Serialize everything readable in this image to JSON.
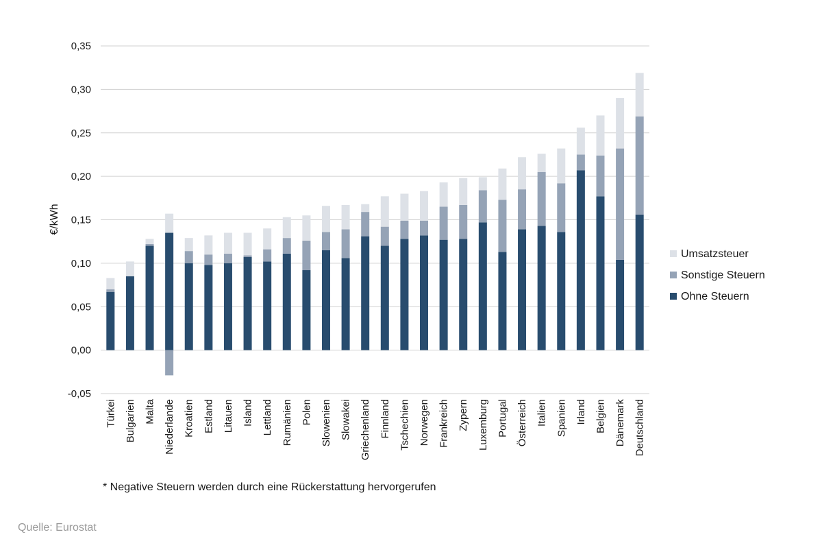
{
  "chart_data": {
    "type": "bar",
    "stacked": true,
    "ylabel": "€/kWh",
    "xlabel": "",
    "ylim": [
      -0.05,
      0.35
    ],
    "yticks": [
      "-0,05",
      "0,00",
      "0,05",
      "0,10",
      "0,15",
      "0,20",
      "0,25",
      "0,30",
      "0,35"
    ],
    "grid": true,
    "legend_position": "right",
    "categories": [
      "Türkei",
      "Bulgarien",
      "Malta",
      "Niederlande",
      "Kroatien",
      "Estland",
      "Litauen",
      "Island",
      "Lettland",
      "Rumänien",
      "Polen",
      "Slowenien",
      "Slowakei",
      "Griechenland",
      "Finnland",
      "Tschechien",
      "Norwegen",
      "Frankreich",
      "Zypern",
      "Luxemburg",
      "Portugal",
      "Österreich",
      "Italien",
      "Spanien",
      "Irland",
      "Belgien",
      "Dänemark",
      "Deutschland"
    ],
    "series": [
      {
        "name": "Ohne Steuern",
        "color": "#284c6e",
        "values": [
          0.067,
          0.085,
          0.12,
          0.135,
          0.1,
          0.098,
          0.1,
          0.107,
          0.102,
          0.111,
          0.092,
          0.115,
          0.106,
          0.131,
          0.12,
          0.128,
          0.132,
          0.127,
          0.128,
          0.147,
          0.113,
          0.139,
          0.143,
          0.136,
          0.207,
          0.177,
          0.104,
          0.156
        ]
      },
      {
        "name": "Sonstige Steuern",
        "color": "#95a3b6",
        "values": [
          0.003,
          0.0,
          0.002,
          -0.029,
          0.014,
          0.012,
          0.011,
          0.002,
          0.014,
          0.018,
          0.034,
          0.021,
          0.033,
          0.028,
          0.022,
          0.021,
          0.017,
          0.038,
          0.039,
          0.037,
          0.06,
          0.046,
          0.062,
          0.056,
          0.018,
          0.047,
          0.128,
          0.113
        ]
      },
      {
        "name": "Umsatzsteuer",
        "color": "#dde1e7",
        "values": [
          0.013,
          0.017,
          0.006,
          0.022,
          0.015,
          0.022,
          0.024,
          0.026,
          0.024,
          0.024,
          0.029,
          0.03,
          0.028,
          0.009,
          0.035,
          0.031,
          0.034,
          0.028,
          0.031,
          0.015,
          0.036,
          0.037,
          0.021,
          0.04,
          0.031,
          0.046,
          0.058,
          0.05
        ]
      }
    ],
    "legend_order": [
      "Umsatzsteuer",
      "Sonstige Steuern",
      "Ohne Steuern"
    ]
  },
  "footnote": "* Negative Steuern werden durch eine Rückerstattung hervorgerufen",
  "source": "Quelle: Eurostat"
}
